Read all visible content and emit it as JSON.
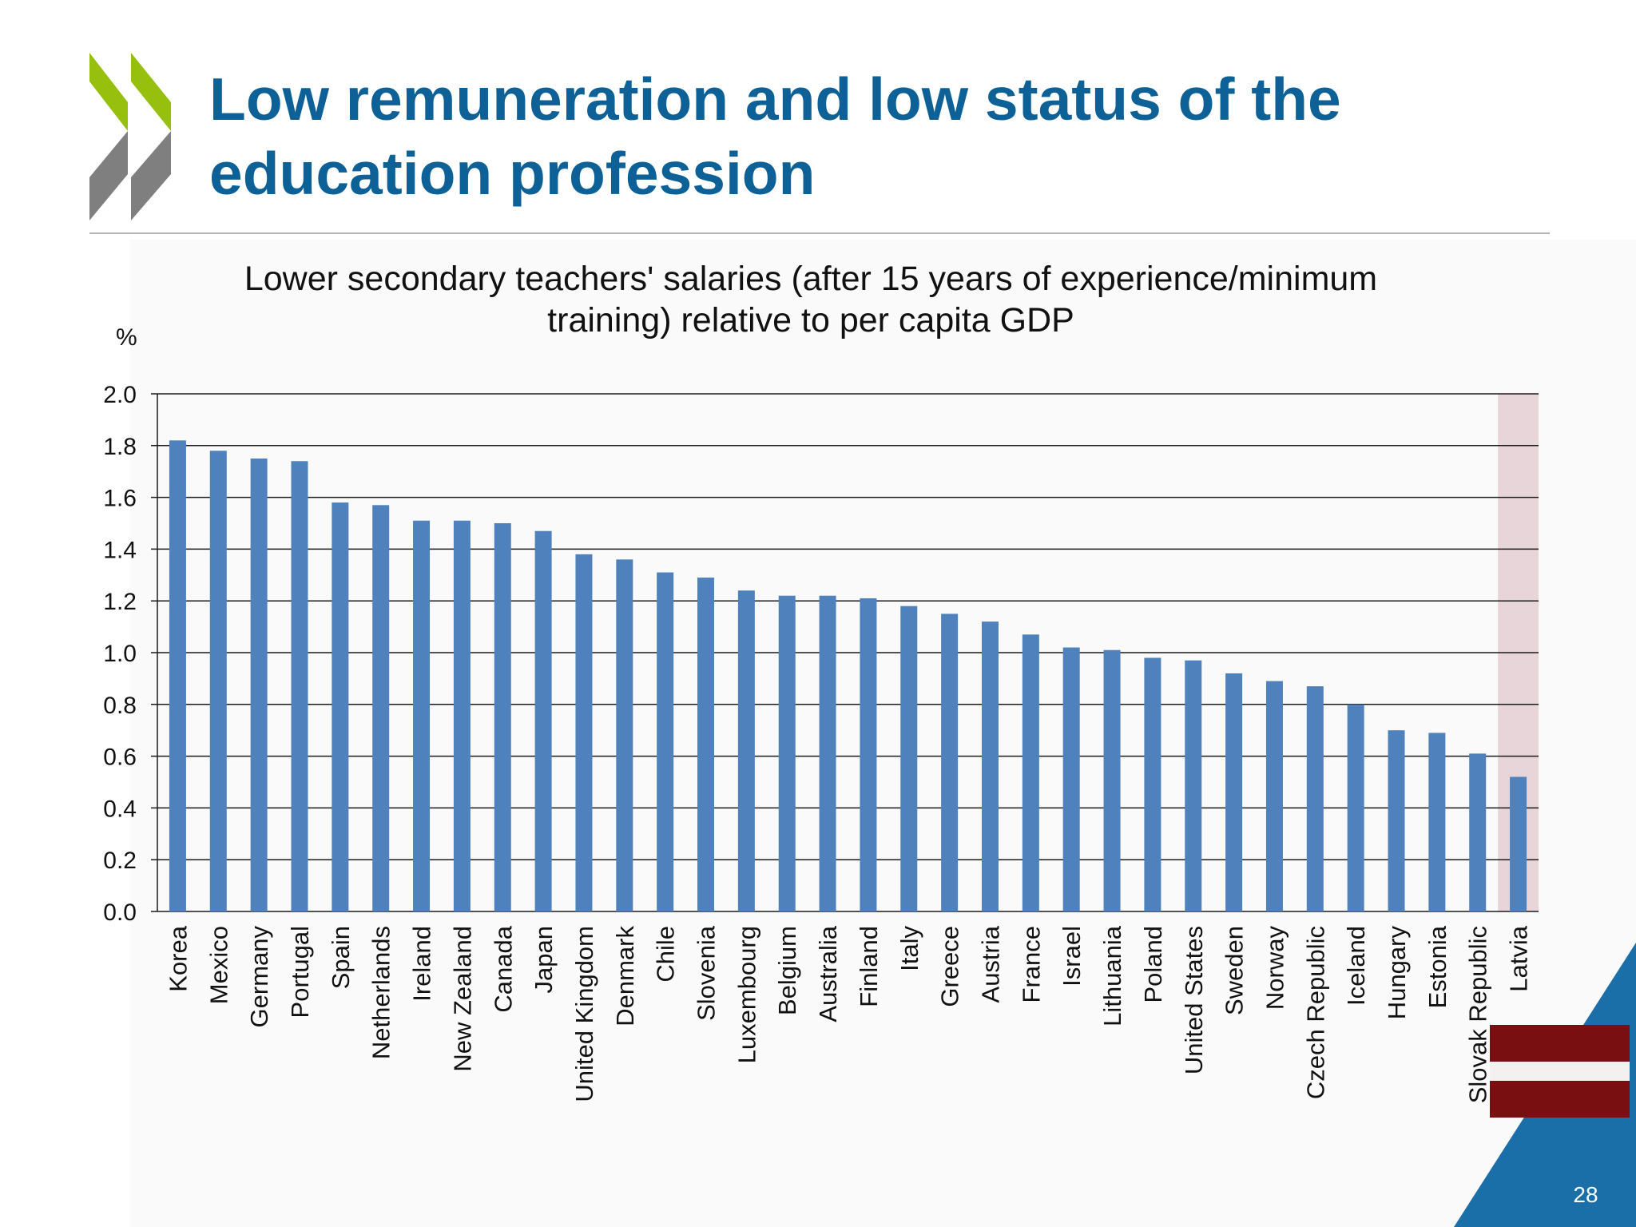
{
  "slide": {
    "title_lines": [
      "Low remuneration and low status of the",
      "education profession"
    ],
    "page_number": "28",
    "accent_color": "#0d6196",
    "logo_green": "#97bf0d",
    "logo_gray": "#7f7f7f",
    "corner_color": "#1a6fa8",
    "highlight_flag": "latvia-flag"
  },
  "chart_data": {
    "type": "bar",
    "title_lines": [
      "Lower secondary teachers' salaries (after 15 years of experience/minimum",
      "training) relative to per capita GDP"
    ],
    "ylabel": "%",
    "ylim": [
      0,
      2.0
    ],
    "yticks": [
      "0.0",
      "0.2",
      "0.4",
      "0.6",
      "0.8",
      "1.0",
      "1.2",
      "1.4",
      "1.6",
      "1.8",
      "2.0"
    ],
    "grid": true,
    "bar_color": "#4f81bd",
    "highlight_band_color": "#e8d5d9",
    "highlighted_category": "Latvia",
    "categories": [
      "Korea",
      "Mexico",
      "Germany",
      "Portugal",
      "Spain",
      "Netherlands",
      "Ireland",
      "New Zealand",
      "Canada",
      "Japan",
      "United Kingdom",
      "Denmark",
      "Chile",
      "Slovenia",
      "Luxembourg",
      "Belgium",
      "Australia",
      "Finland",
      "Italy",
      "Greece",
      "Austria",
      "France",
      "Israel",
      "Lithuania",
      "Poland",
      "United States",
      "Sweden",
      "Norway",
      "Czech Republic",
      "Iceland",
      "Hungary",
      "Estonia",
      "Slovak Republic",
      "Latvia"
    ],
    "values": [
      1.82,
      1.78,
      1.75,
      1.74,
      1.58,
      1.57,
      1.51,
      1.51,
      1.5,
      1.47,
      1.38,
      1.36,
      1.31,
      1.29,
      1.24,
      1.22,
      1.22,
      1.21,
      1.18,
      1.15,
      1.12,
      1.07,
      1.02,
      1.01,
      0.98,
      0.97,
      0.92,
      0.89,
      0.87,
      0.8,
      0.7,
      0.69,
      0.61,
      0.52
    ]
  }
}
